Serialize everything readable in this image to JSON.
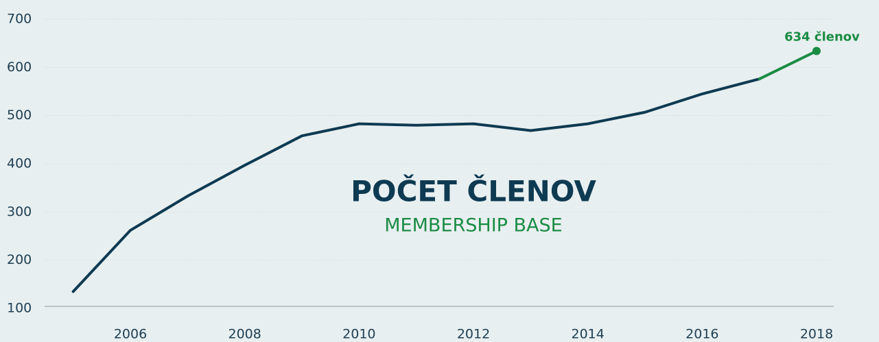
{
  "chart_data": {
    "type": "line",
    "title": "POČET ČLENOV",
    "subtitle": "MEMBERSHIP BASE",
    "annotation": "634 členov",
    "x": [
      2005,
      2006,
      2007,
      2008,
      2009,
      2010,
      2011,
      2012,
      2013,
      2014,
      2015,
      2016,
      2017,
      2018
    ],
    "values": [
      135,
      262,
      333,
      397,
      458,
      483,
      480,
      483,
      469,
      483,
      507,
      545,
      576,
      634
    ],
    "color": "#0e3a52",
    "highlight_color": "#1a8c44",
    "xlim": [
      2004.5,
      2018.3
    ],
    "xticks": [
      2006,
      2008,
      2010,
      2012,
      2014,
      2016,
      2018
    ],
    "ylim": [
      100,
      700
    ],
    "yticks": [
      100,
      200,
      300,
      400,
      500,
      600,
      700
    ],
    "grid": true
  }
}
